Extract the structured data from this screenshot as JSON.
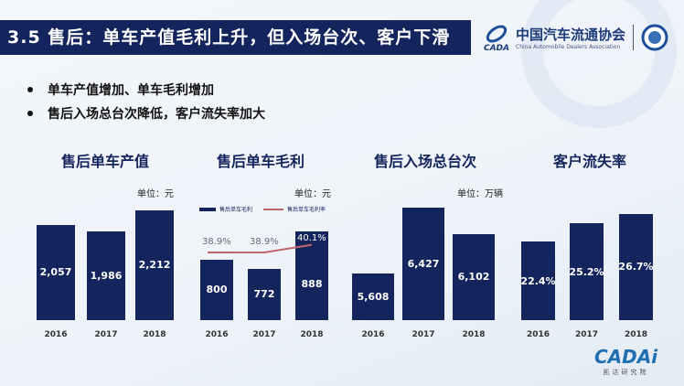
{
  "title": "3.5 售后：单车产值毛利上升，但入场台次、客户下滑",
  "logo": {
    "cn": "中国汽车流通协会",
    "en": "China Automobile Dealers Association",
    "abbr": "CADA"
  },
  "bullets": [
    "单车产值增加、单车毛利增加",
    "售后入场总台次降低，客户流失率加大"
  ],
  "footer_logo": {
    "name": "CADAi",
    "sub": "凯达研究院"
  },
  "chart_data": [
    {
      "type": "bar",
      "title": "售后单车产值",
      "unit": "单位：元",
      "categories": [
        "2016",
        "2017",
        "2018"
      ],
      "values": [
        2057,
        1986,
        2212
      ],
      "labels": [
        "2,057",
        "1,986",
        "2,212"
      ],
      "ylim": [
        1033,
        2310
      ]
    },
    {
      "type": "bar",
      "title": "售后单车毛利",
      "unit": "单位：元",
      "categories": [
        "2016",
        "2017",
        "2018"
      ],
      "values": [
        800,
        772,
        888
      ],
      "labels": [
        "800",
        "772",
        "888"
      ],
      "ylim": [
        613,
        981
      ],
      "legend": [
        "售后单车毛利",
        "售后单车毛利率"
      ],
      "line": {
        "name": "售后单车毛利率",
        "values": [
          38.9,
          38.9,
          40.1
        ],
        "labels": [
          "38.9%",
          "38.9%",
          "40.1%"
        ],
        "color": "#c0666a"
      }
    },
    {
      "type": "bar",
      "title": "售后入场总台次",
      "unit": "单位：万辆",
      "categories": [
        "2016",
        "2017",
        "2018"
      ],
      "values": [
        5608,
        6427,
        6102
      ],
      "labels": [
        "5,608",
        "6,427",
        "6,102"
      ],
      "ylim": [
        5028,
        6507
      ]
    },
    {
      "type": "bar",
      "title": "客户流失率",
      "unit": "",
      "categories": [
        "2016",
        "2017",
        "2018"
      ],
      "values": [
        22.4,
        25.2,
        26.7
      ],
      "labels": [
        "22.4%",
        "25.2%",
        "26.7%"
      ],
      "ylim": [
        10.1,
        28.7
      ]
    }
  ]
}
